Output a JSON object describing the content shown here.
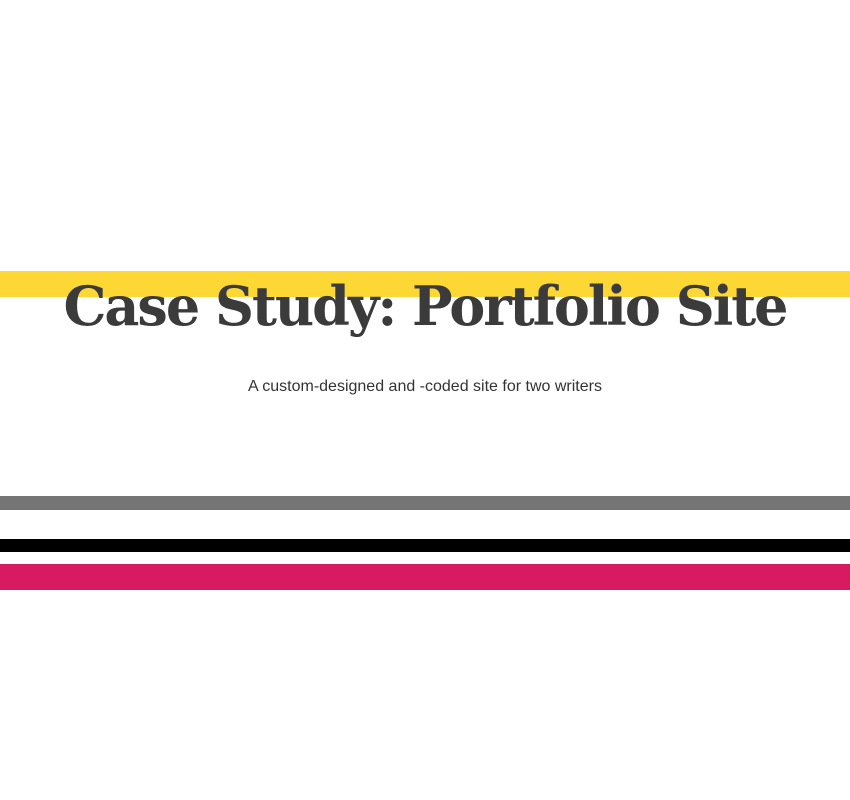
{
  "hero": {
    "title": "Case Study: Portfolio Site",
    "subtitle": "A custom-designed and -coded site for two writers"
  },
  "colors": {
    "title_text": "#3b3b3b",
    "subtitle_text": "#333333",
    "stripe_yellow": "#fdd835",
    "stripe_gray": "#757575",
    "stripe_black": "#000000",
    "stripe_pink": "#d81b60"
  }
}
